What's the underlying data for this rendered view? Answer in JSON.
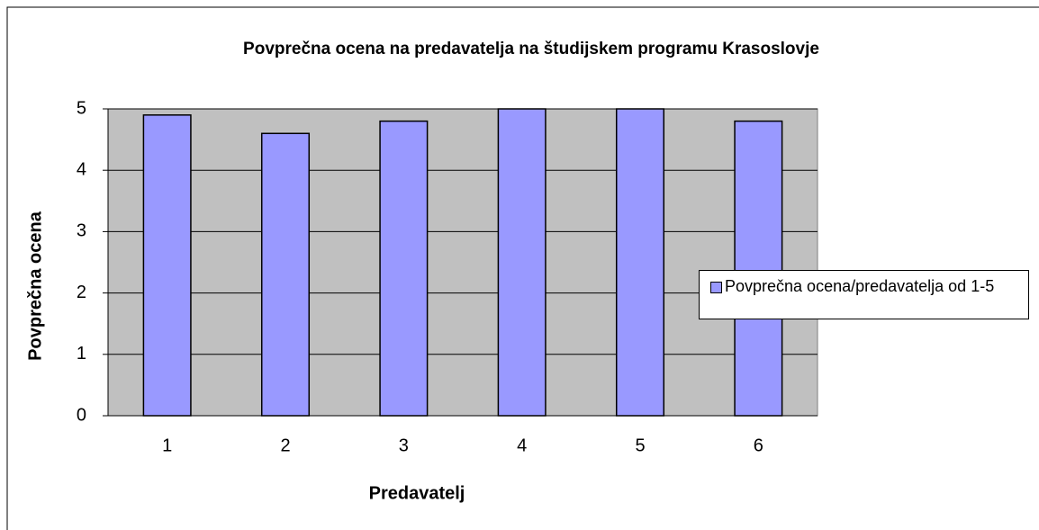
{
  "chart_data": {
    "type": "bar",
    "title": "Povprečna ocena na predavatelja na študijskem programu Krasoslovje",
    "x_label": "Predavatelj",
    "y_label": "Povprečna ocena",
    "categories": [
      "1",
      "2",
      "3",
      "4",
      "5",
      "6"
    ],
    "series": [
      {
        "name": "Povprečna ocena/predavatelja od 1-5",
        "color": "#9999ff",
        "values": [
          4.9,
          4.6,
          4.8,
          5,
          5,
          4.8
        ]
      }
    ],
    "ylim": [
      0,
      5
    ],
    "yticks": [
      0,
      1,
      2,
      3,
      4,
      5
    ],
    "grid": true,
    "legend": "right"
  }
}
